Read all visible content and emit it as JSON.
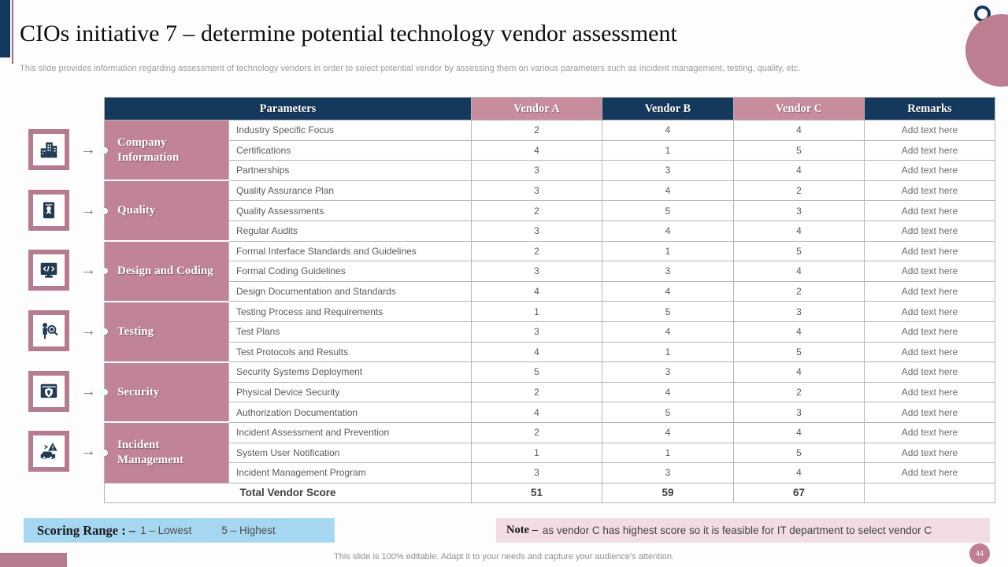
{
  "slide": {
    "title": "CIOs initiative 7 – determine potential technology vendor assessment",
    "subtitle": "This slide provides information regarding assessment of technology vendors in order to select potential vendor by assessing them on  various parameters such as incident management,  testing, quality, etc.",
    "footer": "This slide is 100% editable. Adapt it to your needs and capture your audience's attention.",
    "page_number": "44"
  },
  "colors": {
    "navy": "#14395d",
    "category_pink": "#c08496",
    "header_pink": "#c78d9d",
    "accent_pink": "#b57b8e",
    "scoring_blue": "#a5d7f1",
    "note_pink": "#f1dde2"
  },
  "table": {
    "headers": [
      "Parameters",
      "Vendor A",
      "Vendor B",
      "Vendor C",
      "Remarks"
    ],
    "groups": [
      {
        "category": "Company Information",
        "icon": "company-buildings-icon",
        "rows": [
          {
            "parameter": "Industry Specific Focus",
            "a": "2",
            "b": "4",
            "c": "4",
            "remark": "Add text here"
          },
          {
            "parameter": "Certifications",
            "a": "4",
            "b": "1",
            "c": "5",
            "remark": "Add text here"
          },
          {
            "parameter": "Partnerships",
            "a": "3",
            "b": "3",
            "c": "4",
            "remark": "Add text here"
          }
        ]
      },
      {
        "category": "Quality",
        "icon": "quality-certificate-icon",
        "rows": [
          {
            "parameter": "Quality Assurance Plan",
            "a": "3",
            "b": "4",
            "c": "2",
            "remark": "Add text here"
          },
          {
            "parameter": "Quality Assessments",
            "a": "2",
            "b": "5",
            "c": "3",
            "remark": "Add text here"
          },
          {
            "parameter": "Regular Audits",
            "a": "3",
            "b": "4",
            "c": "4",
            "remark": "Add text here"
          }
        ]
      },
      {
        "category": "Design and Coding",
        "icon": "design-coding-icon",
        "rows": [
          {
            "parameter": "Formal Interface Standards and Guidelines",
            "a": "2",
            "b": "1",
            "c": "5",
            "remark": "Add text here"
          },
          {
            "parameter": "Formal Coding Guidelines",
            "a": "3",
            "b": "3",
            "c": "4",
            "remark": "Add text here"
          },
          {
            "parameter": "Design Documentation and Standards",
            "a": "4",
            "b": "4",
            "c": "2",
            "remark": "Add text here"
          }
        ]
      },
      {
        "category": "Testing",
        "icon": "testing-magnifier-icon",
        "rows": [
          {
            "parameter": "Testing Process and Requirements",
            "a": "1",
            "b": "5",
            "c": "3",
            "remark": "Add text here"
          },
          {
            "parameter": "Test Plans",
            "a": "3",
            "b": "4",
            "c": "4",
            "remark": "Add text here"
          },
          {
            "parameter": "Test Protocols and Results",
            "a": "4",
            "b": "1",
            "c": "5",
            "remark": "Add text here"
          }
        ]
      },
      {
        "category": "Security",
        "icon": "security-shield-icon",
        "rows": [
          {
            "parameter": "Security Systems Deployment",
            "a": "5",
            "b": "3",
            "c": "4",
            "remark": "Add text here"
          },
          {
            "parameter": "Physical Device Security",
            "a": "2",
            "b": "4",
            "c": "2",
            "remark": "Add text here"
          },
          {
            "parameter": "Authorization Documentation",
            "a": "4",
            "b": "5",
            "c": "3",
            "remark": "Add text here"
          }
        ]
      },
      {
        "category": "Incident Management",
        "icon": "incident-warning-icon",
        "rows": [
          {
            "parameter": "Incident Assessment and Prevention",
            "a": "2",
            "b": "4",
            "c": "4",
            "remark": "Add text here"
          },
          {
            "parameter": "System User Notification",
            "a": "1",
            "b": "1",
            "c": "5",
            "remark": "Add text here"
          },
          {
            "parameter": "Incident Management Program",
            "a": "3",
            "b": "3",
            "c": "4",
            "remark": "Add text here"
          }
        ]
      }
    ],
    "total": {
      "label": "Total Vendor Score",
      "a": "51",
      "b": "59",
      "c": "67",
      "remark": ""
    }
  },
  "scoring": {
    "label": "Scoring Range : –",
    "low": "1 – Lowest",
    "high": "5 – Highest"
  },
  "note": {
    "label": "Note –",
    "text": "as vendor C has highest score so it is feasible for IT department to select vendor C"
  }
}
